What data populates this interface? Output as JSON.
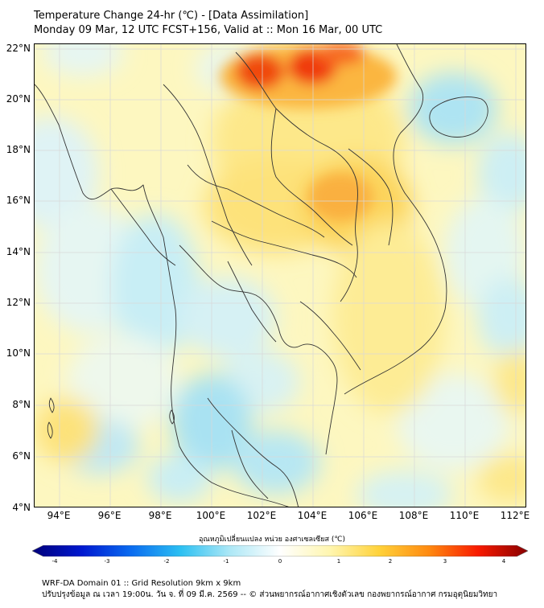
{
  "header": {
    "title_line1": "Temperature Change 24-hr (℃) - [Data Assimilation]",
    "title_line2": "Monday 09 Mar, 12 UTC FCST+156, Valid at :: Mon 16 Mar, 00 UTC"
  },
  "map": {
    "lat_labels": [
      "22°N",
      "20°N",
      "18°N",
      "16°N",
      "14°N",
      "12°N",
      "10°N",
      "8°N",
      "6°N",
      "4°N"
    ],
    "lon_labels": [
      "94°E",
      "96°E",
      "98°E",
      "100°E",
      "102°E",
      "104°E",
      "106°E",
      "108°E",
      "110°E",
      "112°E"
    ]
  },
  "colorbar": {
    "title": "อุณหภูมิเปลี่ยนแปลง หน่วย องศาเซลเซียส (℃)",
    "ticks": [
      "-4",
      "-3",
      "-2",
      "-1",
      "0",
      "1",
      "2",
      "3",
      "4"
    ],
    "min": -4,
    "max": 4,
    "colors": [
      "#00007a",
      "#0018d0",
      "#0a6cf0",
      "#2cc0f2",
      "#aee8f6",
      "#ffffff",
      "#fff6b0",
      "#ffd23a",
      "#ff8a10",
      "#f81a00",
      "#880000"
    ]
  },
  "footer": {
    "line1": "WRF-DA Domain 01 :: Grid Resolution 9km x 9km",
    "line2": "ปรับปรุงข้อมูล ณ เวลา 19:00น. วัน จ. ที่ 09 มี.ค. 2569 -- © ส่วนพยากรณ์อากาศเชิงตัวเลข กองพยากรณ์อากาศ กรมอุตุนิยมวิทยา"
  }
}
